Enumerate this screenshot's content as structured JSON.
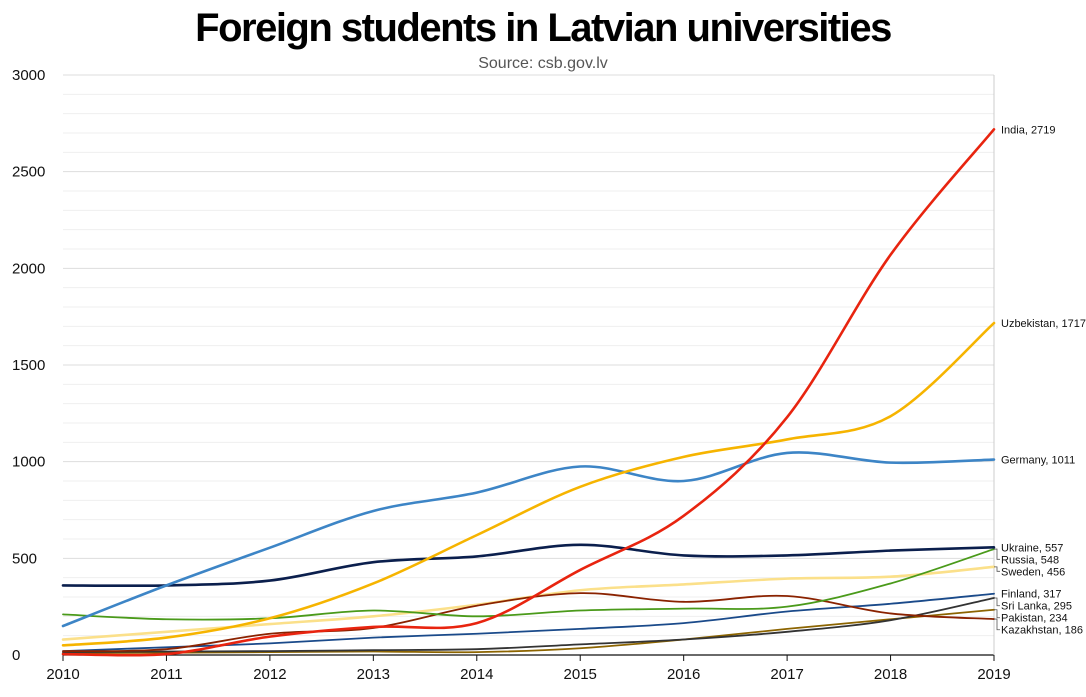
{
  "title": "Foreign students in Latvian universities",
  "subtitle": "Source: csb.gov.lv",
  "chart_data": {
    "type": "line",
    "title": "Foreign students in Latvian universities",
    "subtitle": "Source: csb.gov.lv",
    "x": [
      2010,
      2011,
      2012,
      2013,
      2014,
      2015,
      2016,
      2017,
      2018,
      2019
    ],
    "xlim": [
      2010,
      2019
    ],
    "ylim": [
      0,
      3000
    ],
    "y_ticks": [
      0,
      500,
      1000,
      1500,
      2000,
      2500,
      3000
    ],
    "x_ticks": [
      2010,
      2011,
      2012,
      2013,
      2014,
      2015,
      2016,
      2017,
      2018,
      2019
    ],
    "grid": true,
    "legend": "end labels",
    "series": [
      {
        "name": "Germany",
        "label": "Germany, 1011",
        "color": "#3d85c6",
        "values": [
          150,
          360,
          555,
          745,
          840,
          975,
          900,
          1045,
          995,
          1011
        ]
      },
      {
        "name": "Ukraine",
        "label": "Ukraine, 557",
        "color": "#0b1f4d",
        "values": [
          360,
          360,
          385,
          480,
          510,
          570,
          515,
          515,
          540,
          557
        ]
      },
      {
        "name": "Uzbekistan",
        "label": "Uzbekistan, 1717",
        "color": "#f6b400",
        "values": [
          50,
          90,
          190,
          370,
          620,
          870,
          1025,
          1115,
          1235,
          1717
        ]
      },
      {
        "name": "India",
        "label": "India, 2719",
        "color": "#e8240f",
        "values": [
          5,
          5,
          95,
          145,
          165,
          440,
          720,
          1230,
          2070,
          2719
        ]
      },
      {
        "name": "Russia",
        "label": "Russia, 548",
        "color": "#4a9a1a",
        "values": [
          210,
          185,
          190,
          230,
          200,
          230,
          240,
          250,
          370,
          548
        ]
      },
      {
        "name": "Sweden",
        "label": "Sweden, 456",
        "color": "#fbe08a",
        "values": [
          80,
          120,
          160,
          200,
          260,
          335,
          365,
          395,
          405,
          456
        ]
      },
      {
        "name": "Finland",
        "label": "Finland, 317",
        "color": "#1a4a8a",
        "values": [
          20,
          40,
          60,
          90,
          110,
          135,
          165,
          225,
          265,
          317
        ]
      },
      {
        "name": "Sri Lanka",
        "label": "Sri Lanka, 295",
        "color": "#333333",
        "values": [
          15,
          18,
          20,
          25,
          30,
          55,
          80,
          120,
          180,
          295
        ]
      },
      {
        "name": "Pakistan",
        "label": "Pakistan, 234",
        "color": "#8c6400",
        "values": [
          10,
          12,
          15,
          18,
          15,
          35,
          80,
          135,
          185,
          234
        ]
      },
      {
        "name": "Kazakhstan",
        "label": "Kazakhstan, 186",
        "color": "#8a2200",
        "values": [
          20,
          30,
          110,
          140,
          255,
          320,
          275,
          305,
          215,
          186
        ]
      }
    ]
  }
}
